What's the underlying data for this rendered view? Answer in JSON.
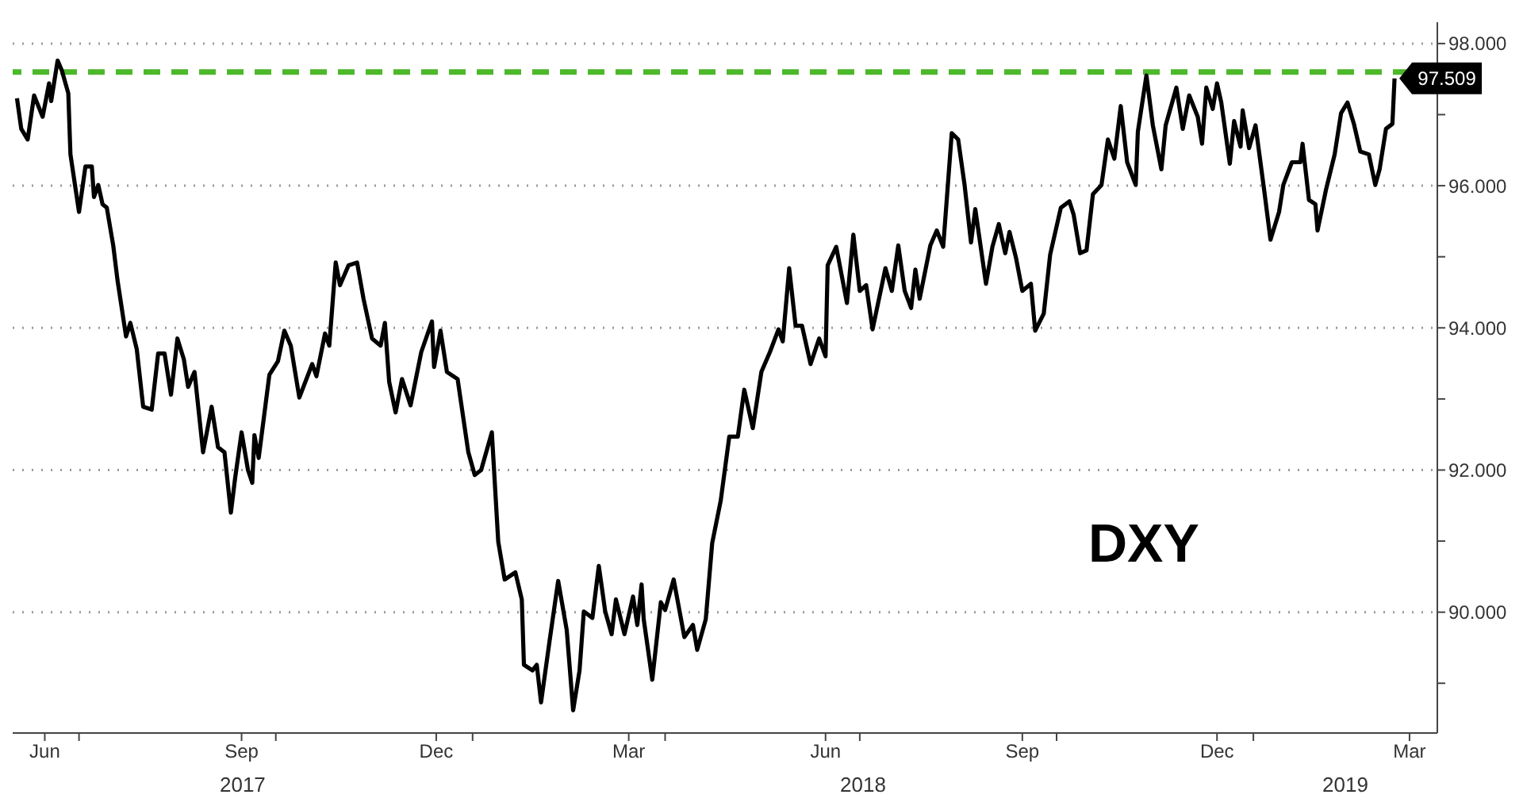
{
  "chart_data": {
    "type": "line",
    "xlim": [
      "2017-05-31",
      "2019-03-28"
    ],
    "ylim": [
      88.3,
      98.3
    ],
    "xticks": [
      {
        "value": "2017-06-15",
        "label": "Jun"
      },
      {
        "value": "2017-07-01",
        "label": null
      },
      {
        "value": "2017-09-15",
        "label": "Sep"
      },
      {
        "value": "2017-10-01",
        "label": null
      },
      {
        "value": "2017-12-15",
        "label": "Dec"
      },
      {
        "value": "2018-01-01",
        "label": null
      },
      {
        "value": "2018-03-15",
        "label": "Mar"
      },
      {
        "value": "2018-04-01",
        "label": null
      },
      {
        "value": "2018-06-15",
        "label": "Jun"
      },
      {
        "value": "2018-07-01",
        "label": null
      },
      {
        "value": "2018-09-15",
        "label": "Sep"
      },
      {
        "value": "2018-10-01",
        "label": null
      },
      {
        "value": "2018-12-15",
        "label": "Dec"
      },
      {
        "value": "2019-01-01",
        "label": null
      },
      {
        "value": "2019-03-15",
        "label": "Mar"
      }
    ],
    "yticks": [
      {
        "value": 89,
        "label": null
      },
      {
        "value": 90,
        "label": "90.000"
      },
      {
        "value": 91,
        "label": null
      },
      {
        "value": 92,
        "label": "92.000"
      },
      {
        "value": 93,
        "label": null
      },
      {
        "value": 94,
        "label": "94.000"
      },
      {
        "value": 95,
        "label": null
      },
      {
        "value": 96,
        "label": "96.000"
      },
      {
        "value": 97,
        "label": null
      },
      {
        "value": 98,
        "label": "98.000"
      }
    ],
    "grid": true,
    "legend": false,
    "marker": "none",
    "line_style": "solid",
    "annotations": [
      "2017",
      "2018",
      "2019"
    ],
    "ref_lines": [
      {
        "axis": "y",
        "value": 97.6,
        "color": "#4cb82a",
        "line_style": "dashed"
      }
    ],
    "x": [
      "2017-06-02",
      "2017-06-04",
      "2017-06-07",
      "2017-06-10",
      "2017-06-14",
      "2017-06-17",
      "2017-06-18",
      "2017-06-21",
      "2017-06-23",
      "2017-06-26",
      "2017-06-27",
      "2017-07-01",
      "2017-07-04",
      "2017-07-07",
      "2017-07-08",
      "2017-07-10",
      "2017-07-12",
      "2017-07-14",
      "2017-07-17",
      "2017-07-19",
      "2017-07-23",
      "2017-07-25",
      "2017-07-28",
      "2017-07-31",
      "2017-08-04",
      "2017-08-07",
      "2017-08-10",
      "2017-08-13",
      "2017-08-16",
      "2017-08-19",
      "2017-08-21",
      "2017-08-24",
      "2017-08-28",
      "2017-09-01",
      "2017-09-04",
      "2017-09-07",
      "2017-09-10",
      "2017-09-12",
      "2017-09-15",
      "2017-09-18",
      "2017-09-20",
      "2017-09-21",
      "2017-09-23",
      "2017-09-28",
      "2017-10-02",
      "2017-10-05",
      "2017-10-08",
      "2017-10-12",
      "2017-10-18",
      "2017-10-20",
      "2017-10-24",
      "2017-10-26",
      "2017-10-29",
      "2017-10-31",
      "2017-11-04",
      "2017-11-08",
      "2017-11-11",
      "2017-11-15",
      "2017-11-19",
      "2017-11-21",
      "2017-11-23",
      "2017-11-26",
      "2017-11-29",
      "2017-12-03",
      "2017-12-08",
      "2017-12-13",
      "2017-12-14",
      "2017-12-17",
      "2017-12-20",
      "2017-12-25",
      "2017-12-30",
      "2018-01-02",
      "2018-01-05",
      "2018-01-10",
      "2018-01-13",
      "2018-01-16",
      "2018-01-21",
      "2018-01-24",
      "2018-01-25",
      "2018-01-29",
      "2018-01-31",
      "2018-02-02",
      "2018-02-06",
      "2018-02-10",
      "2018-02-14",
      "2018-02-17",
      "2018-02-20",
      "2018-02-22",
      "2018-02-26",
      "2018-03-01",
      "2018-03-04",
      "2018-03-07",
      "2018-03-09",
      "2018-03-13",
      "2018-03-17",
      "2018-03-19",
      "2018-03-21",
      "2018-03-22",
      "2018-03-26",
      "2018-03-30",
      "2018-04-01",
      "2018-04-05",
      "2018-04-10",
      "2018-04-14",
      "2018-04-16",
      "2018-04-20",
      "2018-04-23",
      "2018-04-27",
      "2018-05-01",
      "2018-05-05",
      "2018-05-08",
      "2018-05-12",
      "2018-05-16",
      "2018-05-20",
      "2018-05-24",
      "2018-05-26",
      "2018-05-29",
      "2018-06-01",
      "2018-06-04",
      "2018-06-08",
      "2018-06-12",
      "2018-06-15",
      "2018-06-16",
      "2018-06-20",
      "2018-06-25",
      "2018-06-28",
      "2018-07-01",
      "2018-07-04",
      "2018-07-07",
      "2018-07-13",
      "2018-07-16",
      "2018-07-19",
      "2018-07-22",
      "2018-07-25",
      "2018-07-27",
      "2018-07-29",
      "2018-08-03",
      "2018-08-06",
      "2018-08-09",
      "2018-08-13",
      "2018-08-16",
      "2018-08-19",
      "2018-08-22",
      "2018-08-24",
      "2018-08-29",
      "2018-09-01",
      "2018-09-04",
      "2018-09-07",
      "2018-09-09",
      "2018-09-12",
      "2018-09-15",
      "2018-09-19",
      "2018-09-21",
      "2018-09-25",
      "2018-09-28",
      "2018-10-03",
      "2018-10-07",
      "2018-10-09",
      "2018-10-12",
      "2018-10-15",
      "2018-10-18",
      "2018-10-22",
      "2018-10-25",
      "2018-10-28",
      "2018-10-31",
      "2018-11-03",
      "2018-11-07",
      "2018-11-08",
      "2018-11-12",
      "2018-11-15",
      "2018-11-19",
      "2018-11-21",
      "2018-11-26",
      "2018-11-29",
      "2018-12-02",
      "2018-12-06",
      "2018-12-08",
      "2018-12-10",
      "2018-12-13",
      "2018-12-15",
      "2018-12-17",
      "2018-12-21",
      "2018-12-23",
      "2018-12-26",
      "2018-12-27",
      "2018-12-30",
      "2019-01-02",
      "2019-01-06",
      "2019-01-09",
      "2019-01-13",
      "2019-01-15",
      "2019-01-19",
      "2019-01-23",
      "2019-01-24",
      "2019-01-27",
      "2019-01-30",
      "2019-01-31",
      "2019-02-04",
      "2019-02-08",
      "2019-02-11",
      "2019-02-14",
      "2019-02-17",
      "2019-02-20",
      "2019-02-24",
      "2019-02-27",
      "2019-03-01",
      "2019-03-04",
      "2019-03-07",
      "2019-03-08"
    ],
    "series": [
      {
        "name": "DXY",
        "color": "#000000",
        "values": [
          97.23,
          96.8,
          96.65,
          97.27,
          96.97,
          97.44,
          97.19,
          97.76,
          97.62,
          97.3,
          96.44,
          95.63,
          96.27,
          96.27,
          95.84,
          96.01,
          95.74,
          95.69,
          95.16,
          94.67,
          93.88,
          94.07,
          93.7,
          92.89,
          92.85,
          93.64,
          93.64,
          93.06,
          93.85,
          93.56,
          93.17,
          93.38,
          92.25,
          92.89,
          92.32,
          92.25,
          91.4,
          91.89,
          92.53,
          92.0,
          91.82,
          92.49,
          92.17,
          93.34,
          93.53,
          93.96,
          93.75,
          93.02,
          93.49,
          93.32,
          93.92,
          93.75,
          94.92,
          94.6,
          94.88,
          94.92,
          94.41,
          93.85,
          93.75,
          94.07,
          93.24,
          92.81,
          93.28,
          92.91,
          93.66,
          94.09,
          93.45,
          93.96,
          93.38,
          93.28,
          92.25,
          91.93,
          92.0,
          92.53,
          90.99,
          90.46,
          90.56,
          90.18,
          89.26,
          89.18,
          89.26,
          88.73,
          89.6,
          90.44,
          89.75,
          88.62,
          89.18,
          90.01,
          89.92,
          90.65,
          90.01,
          89.69,
          90.18,
          89.69,
          90.22,
          89.82,
          90.39,
          89.9,
          89.05,
          90.14,
          90.03,
          90.46,
          89.65,
          89.82,
          89.47,
          89.9,
          90.97,
          91.57,
          92.47,
          92.47,
          93.13,
          92.59,
          93.38,
          93.66,
          93.98,
          93.81,
          94.84,
          94.03,
          94.03,
          93.49,
          93.85,
          93.6,
          94.88,
          95.14,
          94.35,
          95.31,
          94.52,
          94.6,
          93.98,
          94.84,
          94.52,
          95.16,
          94.52,
          94.28,
          94.82,
          94.41,
          95.16,
          95.37,
          95.14,
          96.74,
          96.65,
          96.01,
          95.2,
          95.67,
          94.62,
          95.14,
          95.46,
          95.05,
          95.35,
          94.99,
          94.52,
          94.62,
          93.96,
          94.2,
          95.03,
          95.69,
          95.78,
          95.59,
          95.05,
          95.09,
          95.88,
          96.01,
          96.65,
          96.38,
          97.12,
          96.33,
          96.01,
          96.76,
          97.55,
          96.85,
          96.23,
          96.85,
          97.38,
          96.8,
          97.27,
          96.97,
          96.59,
          97.38,
          97.08,
          97.44,
          97.17,
          96.31,
          96.91,
          96.55,
          97.06,
          96.53,
          96.85,
          95.95,
          95.24,
          95.63,
          96.01,
          96.33,
          96.33,
          96.59,
          95.8,
          95.74,
          95.37,
          95.95,
          96.44,
          97.02,
          97.17,
          96.87,
          96.48,
          96.44,
          96.01,
          96.23,
          96.8,
          96.87,
          97.509
        ],
        "value_labels": [
          null,
          null,
          null,
          null,
          null,
          null,
          null,
          null,
          null,
          null,
          null,
          null,
          null,
          null,
          null,
          null,
          null,
          null,
          null,
          null,
          null,
          null,
          null,
          null,
          null,
          null,
          null,
          null,
          null,
          null,
          null,
          null,
          null,
          null,
          null,
          null,
          null,
          null,
          null,
          null,
          null,
          null,
          null,
          null,
          null,
          null,
          null,
          null,
          null,
          null,
          null,
          null,
          null,
          null,
          null,
          null,
          null,
          null,
          null,
          null,
          null,
          null,
          null,
          null,
          null,
          null,
          null,
          null,
          null,
          null,
          null,
          null,
          null,
          null,
          null,
          null,
          null,
          null,
          null,
          null,
          null,
          null,
          null,
          null,
          null,
          null,
          null,
          null,
          null,
          null,
          null,
          null,
          null,
          null,
          null,
          null,
          null,
          null,
          null,
          null,
          null,
          null,
          null,
          null,
          null,
          null,
          null,
          null,
          null,
          null,
          null,
          null,
          null,
          null,
          null,
          null,
          null,
          null,
          null,
          null,
          null,
          null,
          null,
          null,
          null,
          null,
          null,
          null,
          null,
          null,
          null,
          null,
          null,
          null,
          null,
          null,
          null,
          null,
          null,
          null,
          null,
          null,
          null,
          null,
          null,
          null,
          null,
          null,
          null,
          null,
          null,
          null,
          null,
          null,
          null,
          null,
          null,
          null,
          null,
          null,
          null,
          null,
          null,
          null,
          null,
          null,
          null,
          null,
          null,
          null,
          null,
          null,
          null,
          null,
          null,
          null,
          null,
          null,
          null,
          null,
          null,
          null,
          null,
          null,
          null,
          null,
          null,
          null,
          null,
          null,
          null,
          null,
          null,
          null,
          null,
          null,
          null,
          null,
          null,
          null,
          null,
          null,
          null,
          null,
          null,
          null,
          null,
          null,
          "97.509"
        ]
      }
    ]
  }
}
